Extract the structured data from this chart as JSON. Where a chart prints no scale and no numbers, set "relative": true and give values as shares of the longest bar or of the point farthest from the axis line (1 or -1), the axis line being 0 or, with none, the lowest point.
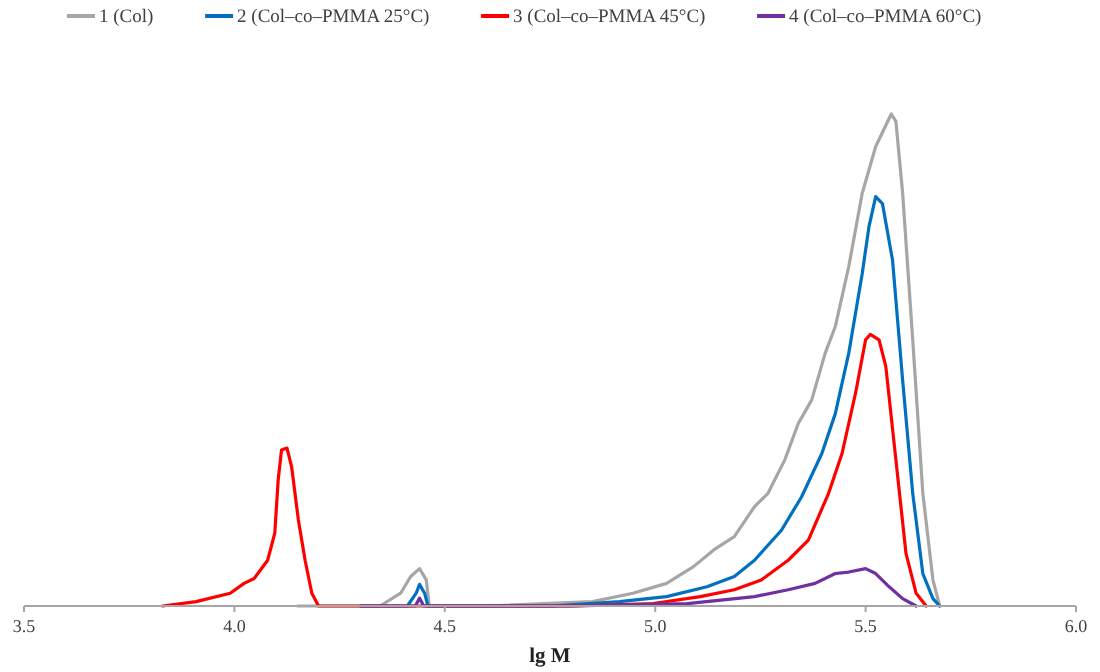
{
  "chart_data": {
    "type": "line",
    "relative": true,
    "xlabel": "lg M",
    "legend": "top",
    "xlim": [
      3.5,
      6.0
    ],
    "xticks": [
      {
        "value": 3.5,
        "label": "3.5"
      },
      {
        "value": 4,
        "label": "4.0"
      },
      {
        "value": 4.5,
        "label": "4.5"
      },
      {
        "value": 5,
        "label": "5.0"
      },
      {
        "value": 5.5,
        "label": "5.5"
      },
      {
        "value": 6,
        "label": "6.0"
      }
    ],
    "series": [
      {
        "name": "1 (Col)",
        "color": "#a6a6a6",
        "x": [
          4.15,
          4.346,
          4.395,
          4.419,
          4.44,
          4.456,
          4.463,
          4.6,
          4.851,
          4.947,
          5.027,
          5.091,
          5.139,
          5.188,
          5.236,
          5.268,
          5.308,
          5.34,
          5.372,
          5.404,
          5.428,
          5.46,
          5.492,
          5.524,
          5.561,
          5.572,
          5.588,
          5.612,
          5.636,
          5.66,
          5.676
        ],
        "values": [
          0,
          0,
          0.026,
          0.06,
          0.076,
          0.053,
          0,
          0,
          0.009,
          0.026,
          0.046,
          0.08,
          0.114,
          0.141,
          0.202,
          0.229,
          0.297,
          0.371,
          0.419,
          0.514,
          0.568,
          0.69,
          0.839,
          0.934,
          1,
          0.985,
          0.839,
          0.541,
          0.229,
          0.053,
          0
        ]
      },
      {
        "name": "2 (Col–co–PMMA 25°C)",
        "color": "#0070c0",
        "x": [
          4.3,
          4.411,
          4.432,
          4.44,
          4.452,
          4.46,
          4.755,
          4.915,
          5.027,
          5.123,
          5.188,
          5.236,
          5.3,
          5.348,
          5.396,
          5.428,
          5.46,
          5.492,
          5.508,
          5.524,
          5.54,
          5.564,
          5.588,
          5.612,
          5.636,
          5.66,
          5.676
        ],
        "values": [
          0,
          0,
          0.026,
          0.044,
          0.026,
          0,
          0,
          0.009,
          0.019,
          0.039,
          0.06,
          0.093,
          0.154,
          0.222,
          0.31,
          0.391,
          0.514,
          0.676,
          0.771,
          0.832,
          0.818,
          0.703,
          0.459,
          0.229,
          0.066,
          0.015,
          0
        ]
      },
      {
        "name": "3 (Col–co–PMMA 45°C)",
        "color": "#ff0000",
        "x": [
          3.829,
          3.909,
          3.99,
          4.023,
          4.047,
          4.079,
          4.096,
          4.104,
          4.112,
          4.125,
          4.136,
          4.152,
          4.168,
          4.184,
          4.2,
          4.8,
          4.995,
          5.107,
          5.188,
          5.252,
          5.316,
          5.364,
          5.412,
          5.444,
          5.476,
          5.5,
          5.511,
          5.532,
          5.548,
          5.572,
          5.596,
          5.62,
          5.644
        ],
        "values": [
          0,
          0.009,
          0.026,
          0.046,
          0.056,
          0.093,
          0.148,
          0.256,
          0.317,
          0.321,
          0.283,
          0.175,
          0.093,
          0.026,
          0,
          0,
          0.005,
          0.019,
          0.033,
          0.053,
          0.093,
          0.134,
          0.229,
          0.31,
          0.432,
          0.541,
          0.552,
          0.541,
          0.487,
          0.297,
          0.107,
          0.026,
          0
        ]
      },
      {
        "name": "4 (Col–co–PMMA 60°C)",
        "color": "#7030a0",
        "x": [
          4.3,
          4.43,
          4.44,
          4.45,
          4.8,
          5.076,
          5.236,
          5.316,
          5.38,
          5.428,
          5.46,
          5.5,
          5.524,
          5.556,
          5.588,
          5.62
        ],
        "values": [
          0,
          0,
          0.016,
          0,
          0,
          0.005,
          0.019,
          0.033,
          0.046,
          0.066,
          0.069,
          0.076,
          0.066,
          0.039,
          0.015,
          0
        ]
      }
    ]
  }
}
